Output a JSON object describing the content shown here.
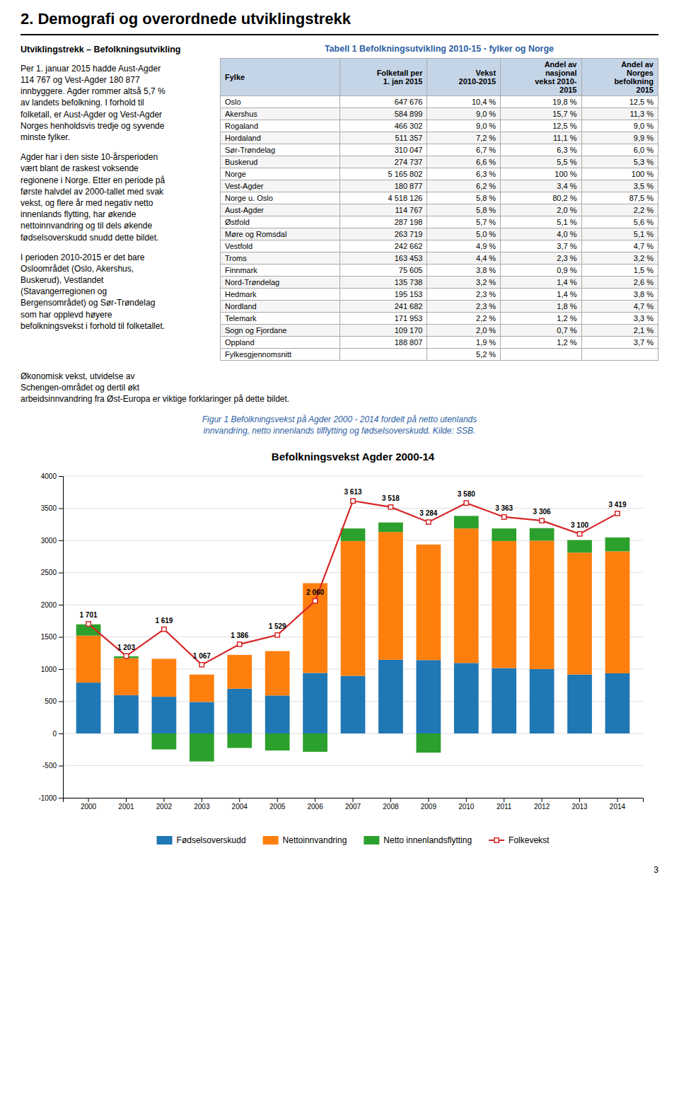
{
  "page_title": "2. Demografi og overordnede utviklingstrekk",
  "section_title": "Utviklingstrekk – Befolkningsutvikling",
  "paragraphs": [
    "Per 1. januar 2015 hadde Aust-Agder\n114 767 og Vest-Agder 180 877\ninnbyggere. Agder rommer altså 5,7 %\nav landets befolkning. I forhold til\nfolketall, er Aust-Agder og Vest-Agder\nNorges henholdsvis tredje og syvende\nminste fylker.",
    "Agder har i den siste 10-årsperioden\nvært blant de raskest voksende\nregionene i Norge. Etter en periode på\nførste halvdel av 2000-tallet med svak\nvekst, og flere år med negativ netto\ninnenlands flytting, har økende\nnettoinnvandring og til dels økende\nfødselsoverskudd snudd dette bildet.",
    "I perioden 2010-2015 er det bare\nOsloområdet (Oslo, Akershus,\nBuskerud), Vestlandet\n(Stavangerregionen og\nBergensområdet) og Sør-Trøndelag\nsom har opplevd høyere\nbefolkningsvekst i forhold til folketallet.",
    "Økonomisk vekst, utvidelse av\nSchengen-området og dertil økt\narbeidsinnvandring fra Øst-Europa er viktige forklaringer på dette bildet."
  ],
  "table": {
    "title": "Tabell 1 Befolkningsutvikling 2010-15 - fylker og Norge",
    "header": [
      "Fylke",
      "Folketall per\n1. jan 2015",
      "Vekst\n2010-2015",
      "Andel av\nnasjonal\nvekst 2010-\n2015",
      "Andel av\nNorges\nbefolkning\n2015"
    ],
    "rows": [
      [
        "Oslo",
        "647 676",
        "10,4 %",
        "19,8 %",
        "12,5 %"
      ],
      [
        "Akershus",
        "584 899",
        "9,0 %",
        "15,7 %",
        "11,3 %"
      ],
      [
        "Rogaland",
        "466 302",
        "9,0 %",
        "12,5 %",
        "9,0 %"
      ],
      [
        "Hordaland",
        "511 357",
        "7,2 %",
        "11,1 %",
        "9,9 %"
      ],
      [
        "Sør-Trøndelag",
        "310 047",
        "6,7 %",
        "6,3 %",
        "6,0 %"
      ],
      [
        "Buskerud",
        "274 737",
        "6,6 %",
        "5,5 %",
        "5,3 %"
      ],
      [
        "Norge",
        "5 165 802",
        "6,3 %",
        "100 %",
        "100 %"
      ],
      [
        "Vest-Agder",
        "180 877",
        "6,2 %",
        "3,4 %",
        "3,5 %"
      ],
      [
        "Norge u. Oslo",
        "4 518 126",
        "5,8 %",
        "80,2 %",
        "87,5 %"
      ],
      [
        "Aust-Agder",
        "114 767",
        "5,8 %",
        "2,0 %",
        "2,2 %"
      ],
      [
        "Østfold",
        "287 198",
        "5,7 %",
        "5,1 %",
        "5,6 %"
      ],
      [
        "Møre og Romsdal",
        "263 719",
        "5,0 %",
        "4,0 %",
        "5,1 %"
      ],
      [
        "Vestfold",
        "242 662",
        "4,9 %",
        "3,7 %",
        "4,7 %"
      ],
      [
        "Troms",
        "163 453",
        "4,4 %",
        "2,3 %",
        "3,2 %"
      ],
      [
        "Finnmark",
        "75 605",
        "3,8 %",
        "0,9 %",
        "1,5 %"
      ],
      [
        "Nord-Trøndelag",
        "135 738",
        "3,2 %",
        "1,4 %",
        "2,6 %"
      ],
      [
        "Hedmark",
        "195 153",
        "2,3 %",
        "1,4 %",
        "3,8 %"
      ],
      [
        "Nordland",
        "241 682",
        "2,3 %",
        "1,8 %",
        "4,7 %"
      ],
      [
        "Telemark",
        "171 953",
        "2,2 %",
        "1,2 %",
        "3,3 %"
      ],
      [
        "Sogn og Fjordane",
        "109 170",
        "2,0 %",
        "0,7 %",
        "2,1 %"
      ],
      [
        "Oppland",
        "188 807",
        "1,9 %",
        "1,2 %",
        "3,7 %"
      ]
    ],
    "footer": [
      "Fylkesgjennomsnitt",
      null,
      "5,2 %",
      null,
      null
    ]
  },
  "caption": [
    "Figur 1 Befolkningsvekst på Agder 2000 - 2014 fordelt på netto utenlands",
    "innvandring, netto innenlands tilflytting og fødselsoverskudd. Kilde: SSB."
  ],
  "page_number": "3",
  "chart_data": {
    "type": "bar",
    "title": "Befolkningsvekst Agder 2000-14",
    "stacked": true,
    "categories": [
      "2000",
      "2001",
      "2002",
      "2003",
      "2004",
      "2005",
      "2006",
      "2007",
      "2008",
      "2009",
      "2010",
      "2011",
      "2012",
      "2013",
      "2014"
    ],
    "series": [
      {
        "name": "Fødselsoverskudd",
        "type": "bar",
        "values": [
          790,
          595,
          570,
          490,
          695,
          590,
          940,
          895,
          1145,
          1140,
          1095,
          1015,
          1000,
          915,
          935
        ]
      },
      {
        "name": "Nettoinnvandring",
        "type": "bar",
        "values": [
          730,
          575,
          590,
          425,
          525,
          690,
          1395,
          2095,
          1985,
          1795,
          2090,
          1975,
          1995,
          1895,
          1895
        ]
      },
      {
        "name": "Netto innenlandsflytting",
        "type": "bar",
        "values": [
          175,
          28,
          -248,
          -435,
          -225,
          -265,
          -285,
          195,
          148,
          -298,
          195,
          195,
          195,
          195,
          215
        ]
      },
      {
        "name": "Folkevekst",
        "type": "line",
        "marker": "square",
        "data_labels": true,
        "values": [
          1701,
          1203,
          1619,
          1067,
          1386,
          1529,
          2060,
          3613,
          3518,
          3284,
          3580,
          3363,
          3306,
          3100,
          3419
        ],
        "value_labels": [
          "1 701",
          "1 203",
          "1 619",
          "1 067",
          "1 386",
          "1 529",
          "2 060",
          "3 613",
          "3 518",
          "3 284",
          "3 580",
          "3 363",
          "3 306",
          "3 100",
          "3 419"
        ]
      }
    ],
    "ylim": [
      -1000,
      4000
    ],
    "yticks": [
      -1000,
      -500,
      0,
      500,
      1000,
      1500,
      2000,
      2500,
      3000,
      3500,
      4000
    ],
    "grid": true,
    "legend": "bottom"
  }
}
